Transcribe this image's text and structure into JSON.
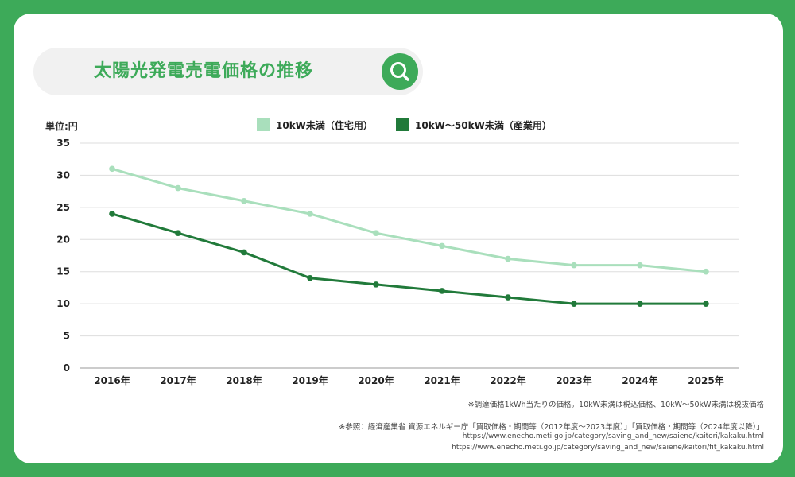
{
  "title": "太陽光発電売電価格の推移",
  "icons": {
    "search": "search-icon"
  },
  "colors": {
    "background": "#3daa59",
    "residential": "#a9dfbc",
    "industrial": "#217a3a",
    "title": "#3daa59"
  },
  "chart_data": {
    "type": "line",
    "ylabel": "単位:円",
    "categories": [
      "2016年",
      "2017年",
      "2018年",
      "2019年",
      "2020年",
      "2021年",
      "2022年",
      "2023年",
      "2024年",
      "2025年"
    ],
    "series": [
      {
        "name": "10kW未満（住宅用）",
        "color": "#a9dfbc",
        "values": [
          31,
          28,
          26,
          24,
          21,
          19,
          17,
          16,
          16,
          15
        ]
      },
      {
        "name": "10kW〜50kW未満（産業用）",
        "color": "#217a3a",
        "values": [
          24,
          21,
          18,
          14,
          13,
          12,
          11,
          10,
          10,
          10
        ]
      }
    ],
    "ylim": [
      0,
      35
    ],
    "yticks": [
      0,
      5,
      10,
      15,
      20,
      25,
      30,
      35
    ],
    "grid": true,
    "legend_position": "top-center"
  },
  "notes": {
    "tax_note": "※調達価格1kWh当たりの価格。10kW未満は税込価格、10kW〜50kW未満は税抜価格",
    "source": "※参照：経済産業省 資源エネルギー庁「買取価格・期間等（2012年度〜2023年度）」「買取価格・期間等（2024年度以降）」",
    "url1": "https://www.enecho.meti.go.jp/category/saving_and_new/saiene/kaitori/kakaku.html",
    "url2": "https://www.enecho.meti.go.jp/category/saving_and_new/saiene/kaitori/fit_kakaku.html"
  }
}
